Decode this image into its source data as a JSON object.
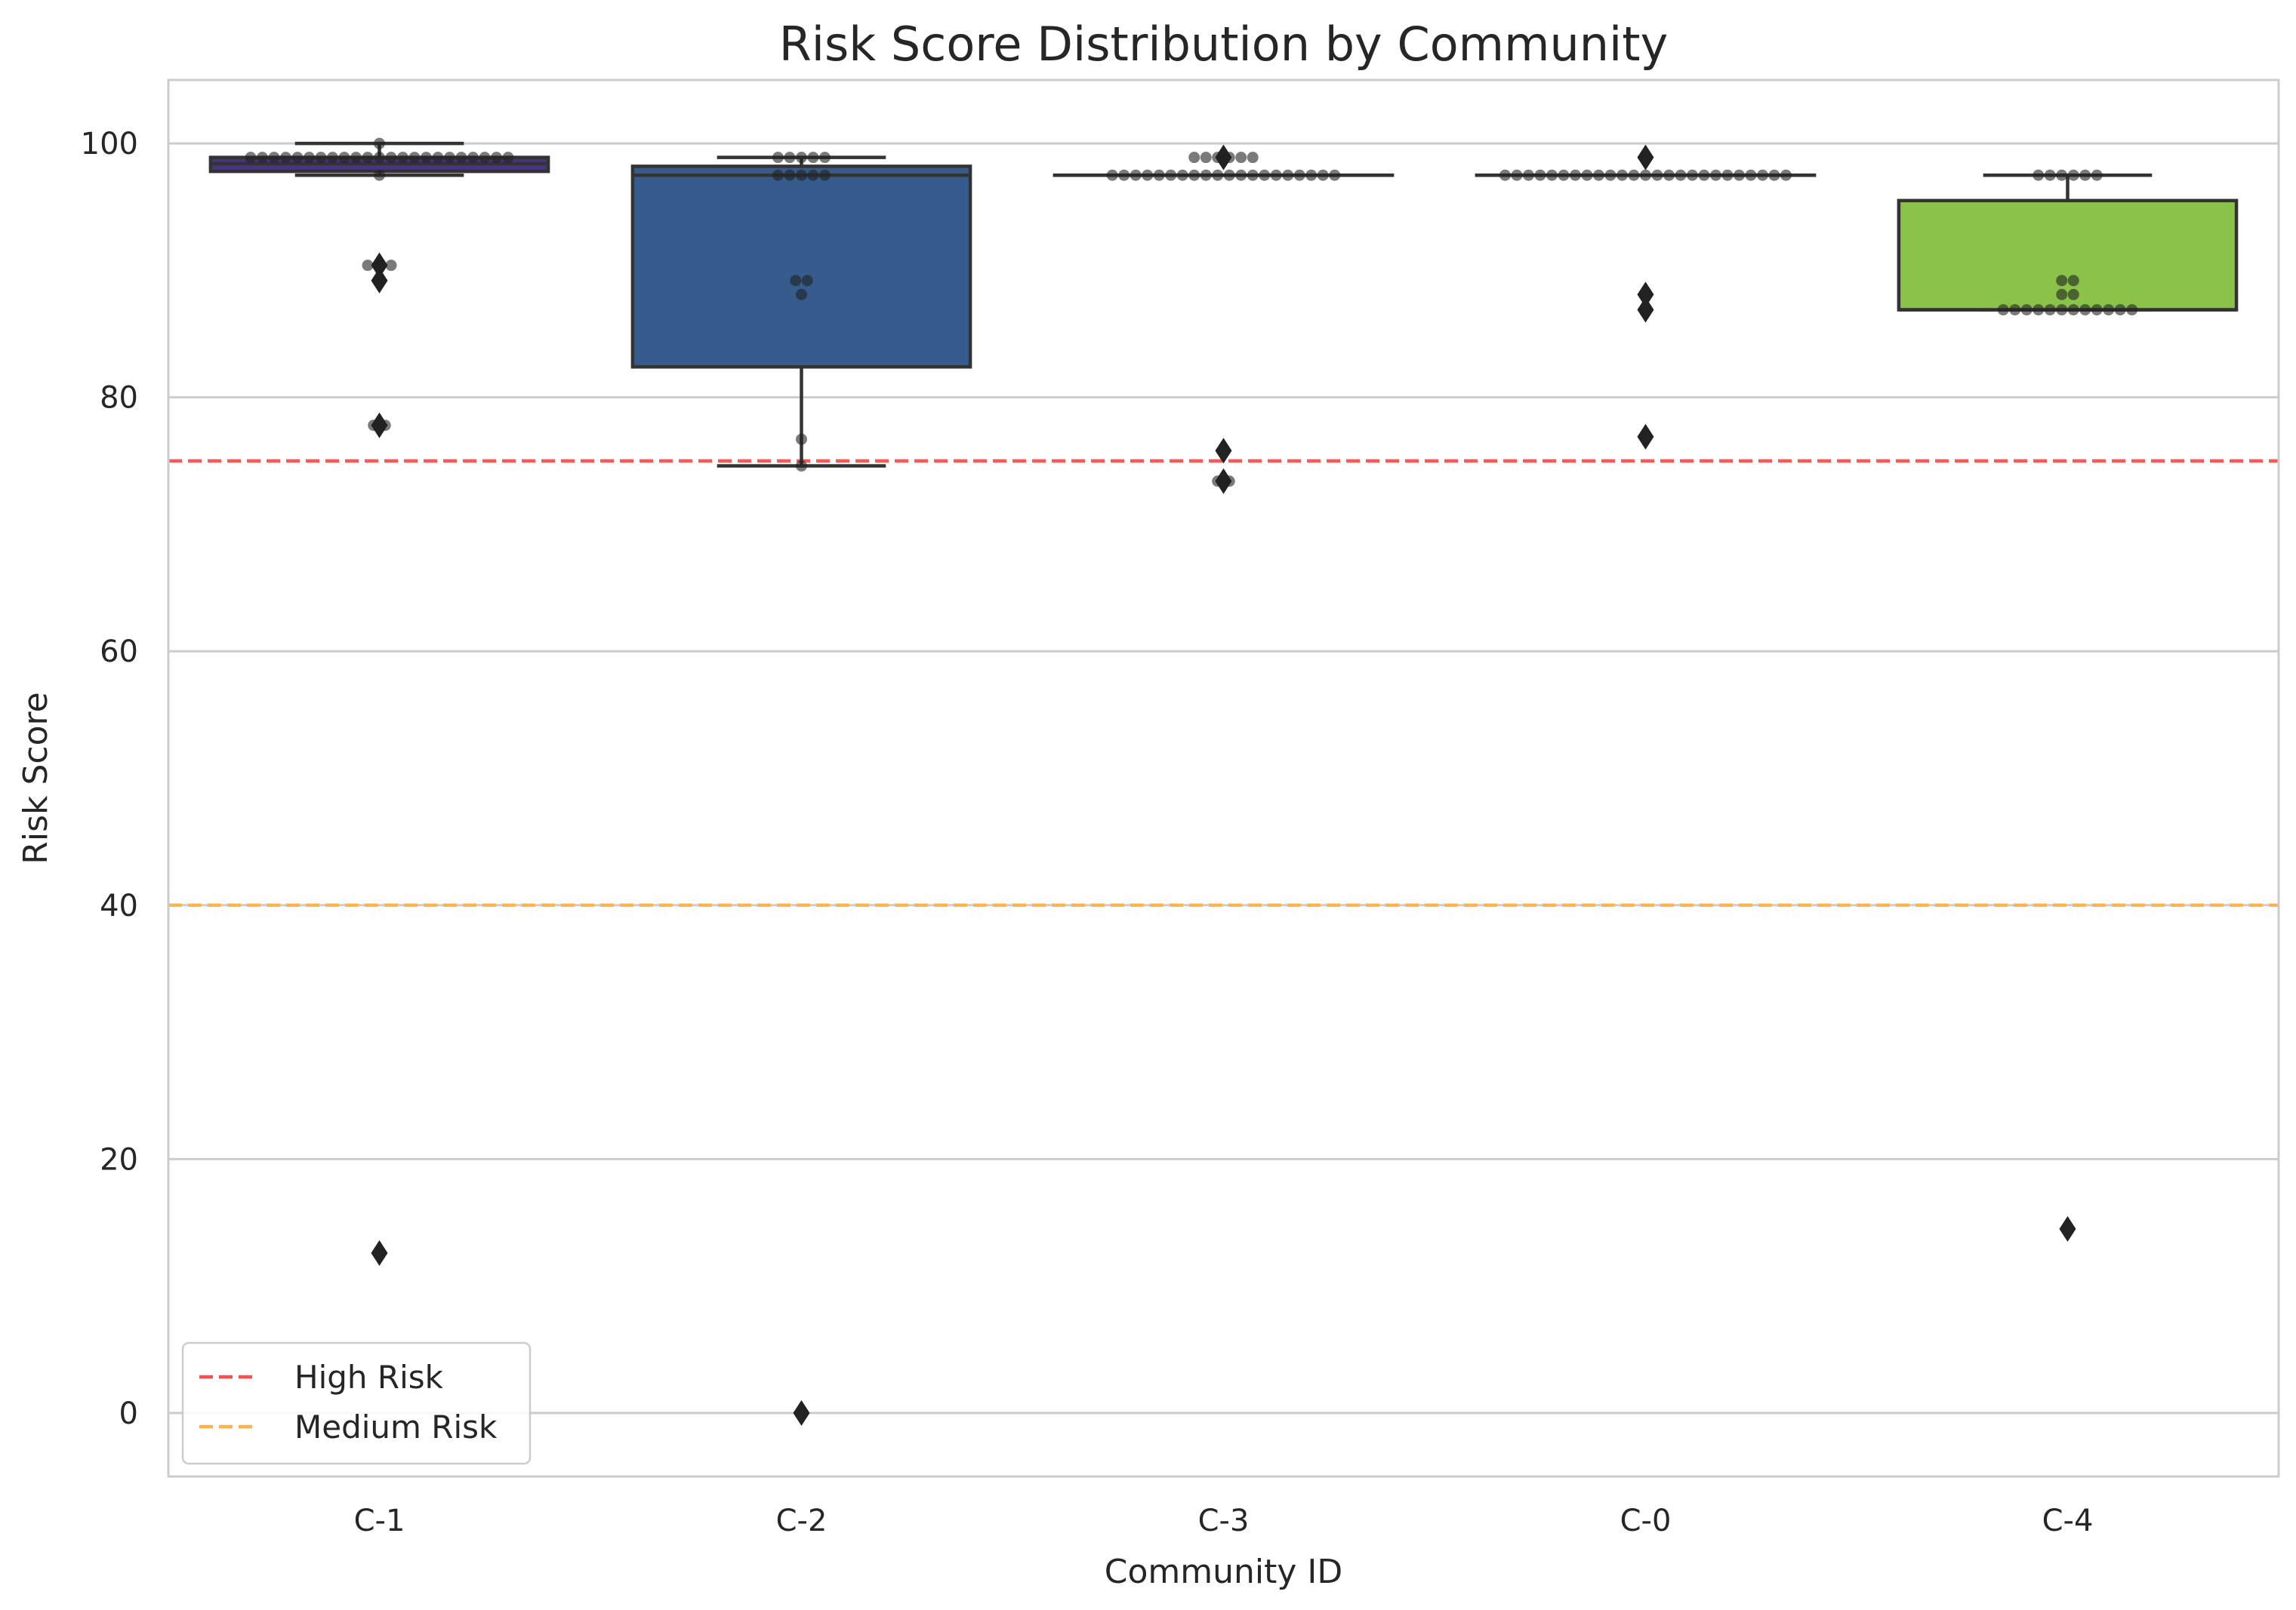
{
  "chart_data": {
    "type": "box",
    "title": "Risk Score Distribution by Community",
    "xlabel": "Community ID",
    "ylabel": "Risk Score",
    "ylim": [
      -5,
      105
    ],
    "yticks": [
      0,
      20,
      40,
      60,
      80,
      100
    ],
    "grid": true,
    "legend_position": "lower-left",
    "categories": [
      "C-1",
      "C-2",
      "C-3",
      "C-0",
      "C-4"
    ],
    "boxes": [
      {
        "category": "C-1",
        "color": "#463480",
        "q1": 97.8,
        "median": 98.4,
        "q3": 98.9,
        "whisker_low": 97.5,
        "whisker_high": 100,
        "outliers": [
          90.4,
          89.2,
          77.8,
          12.6
        ]
      },
      {
        "category": "C-2",
        "color": "#365C8D",
        "q1": 82.4,
        "median": 97.5,
        "q3": 98.2,
        "whisker_low": 74.6,
        "whisker_high": 98.9,
        "outliers": [
          0
        ]
      },
      {
        "category": "C-3",
        "color": "#277F8E",
        "q1": 97.5,
        "median": 97.5,
        "q3": 97.5,
        "whisker_low": 97.5,
        "whisker_high": 97.5,
        "outliers": [
          98.9,
          75.8,
          73.4
        ]
      },
      {
        "category": "C-0",
        "color": "#1FA187",
        "q1": 97.5,
        "median": 97.5,
        "q3": 97.5,
        "whisker_low": 97.5,
        "whisker_high": 97.5,
        "outliers": [
          98.9,
          88.1,
          86.9,
          76.9
        ]
      },
      {
        "category": "C-4",
        "color": "#8BC34A",
        "q1": 86.9,
        "median": 86.9,
        "q3": 95.5,
        "whisker_low": 86.9,
        "whisker_high": 97.5,
        "outliers": [
          14.5
        ]
      }
    ],
    "swarm": [
      {
        "category": "C-1",
        "points": [
          {
            "y": 100,
            "n": 1
          },
          {
            "y": 98.9,
            "n": 23
          },
          {
            "y": 97.5,
            "n": 1
          },
          {
            "y": 90.4,
            "n": 3
          },
          {
            "y": 89.2,
            "n": 1
          },
          {
            "y": 77.8,
            "n": 2
          }
        ]
      },
      {
        "category": "C-2",
        "points": [
          {
            "y": 98.9,
            "n": 5
          },
          {
            "y": 97.5,
            "n": 5
          },
          {
            "y": 89.2,
            "n": 2
          },
          {
            "y": 88.1,
            "n": 1
          },
          {
            "y": 76.7,
            "n": 1
          },
          {
            "y": 74.6,
            "n": 1
          }
        ]
      },
      {
        "category": "C-3",
        "points": [
          {
            "y": 98.9,
            "n": 6
          },
          {
            "y": 97.5,
            "n": 20
          },
          {
            "y": 73.4,
            "n": 2
          }
        ]
      },
      {
        "category": "C-0",
        "points": [
          {
            "y": 97.5,
            "n": 25
          }
        ]
      },
      {
        "category": "C-4",
        "points": [
          {
            "y": 97.5,
            "n": 6
          },
          {
            "y": 89.2,
            "n": 2
          },
          {
            "y": 88.1,
            "n": 2
          },
          {
            "y": 86.9,
            "n": 12
          }
        ]
      }
    ],
    "reference_lines": [
      {
        "name": "High Risk",
        "y": 75,
        "color": "#FF4D4D",
        "style": "dashed"
      },
      {
        "name": "Medium Risk",
        "y": 40,
        "color": "#FFB347",
        "style": "dashed"
      }
    ]
  }
}
